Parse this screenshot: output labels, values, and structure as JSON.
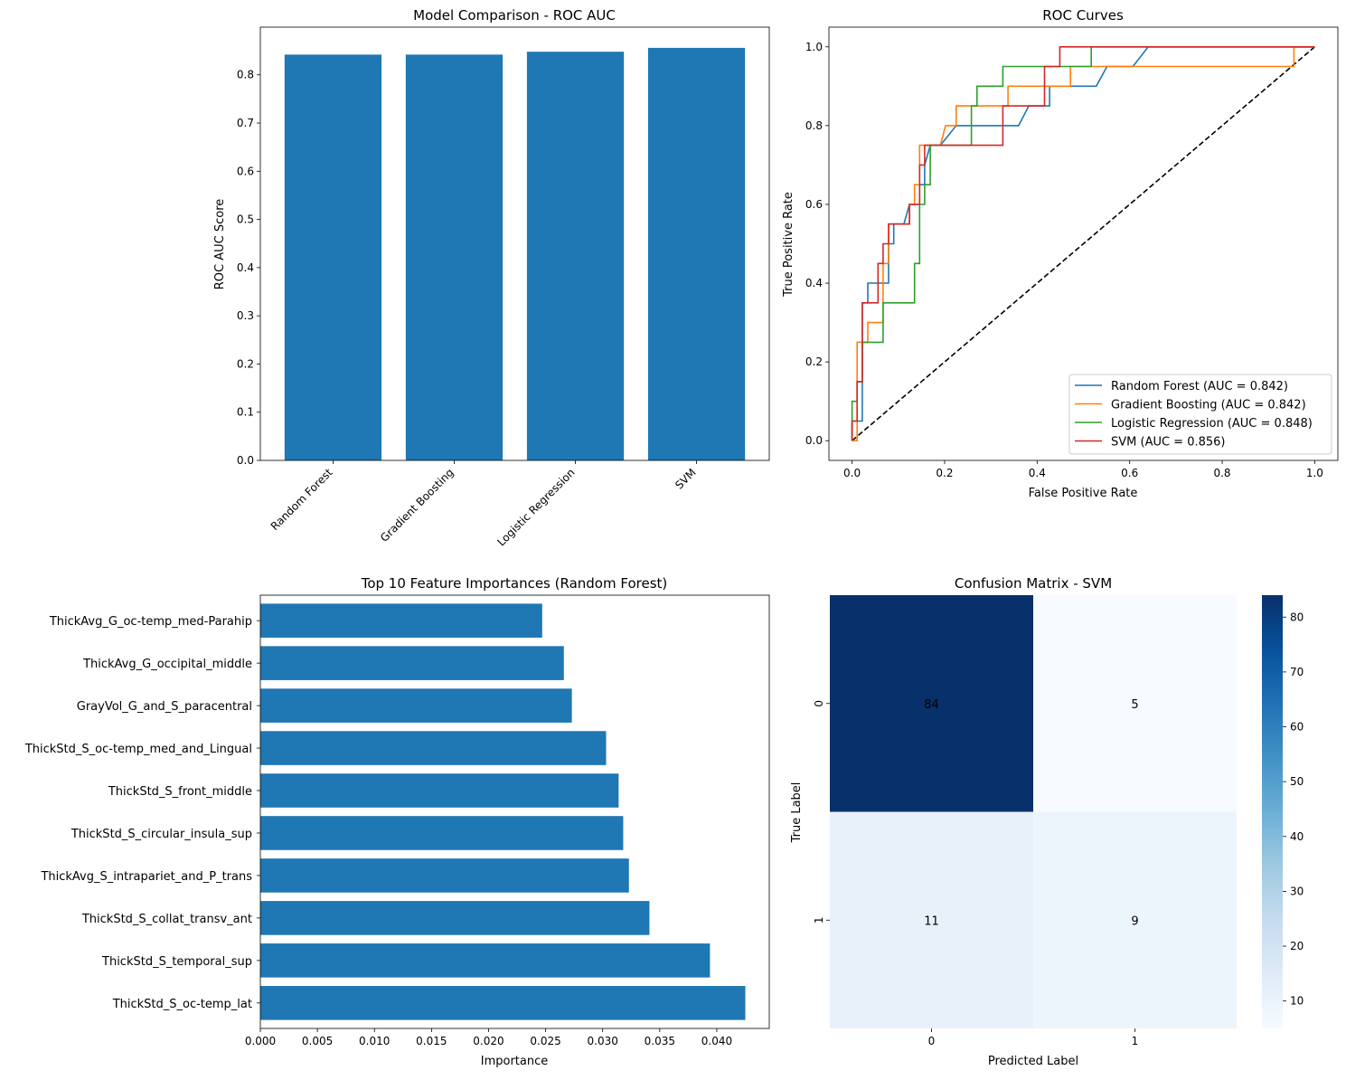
{
  "chart_data": [
    {
      "type": "bar",
      "title": "Model Comparison - ROC AUC",
      "xlabel": "",
      "ylabel": "ROC AUC Score",
      "categories": [
        "Random Forest",
        "Gradient Boosting",
        "Logistic Regression",
        "SVM"
      ],
      "values": [
        0.842,
        0.842,
        0.848,
        0.856
      ],
      "ylim": [
        0,
        0.899
      ],
      "yticks": [
        0.0,
        0.1,
        0.2,
        0.3,
        0.4,
        0.5,
        0.6,
        0.7,
        0.8
      ],
      "ytick_labels": [
        "0.0",
        "0.1",
        "0.2",
        "0.3",
        "0.4",
        "0.5",
        "0.6",
        "0.7",
        "0.8"
      ],
      "color": "#1f77b4"
    },
    {
      "type": "line",
      "title": "ROC Curves",
      "xlabel": "False Positive Rate",
      "ylabel": "True Positive Rate",
      "xlim": [
        -0.05,
        1.05
      ],
      "ylim": [
        -0.05,
        1.05
      ],
      "xticks": [
        0.0,
        0.2,
        0.4,
        0.6,
        0.8,
        1.0
      ],
      "xtick_labels": [
        "0.0",
        "0.2",
        "0.4",
        "0.6",
        "0.8",
        "1.0"
      ],
      "yticks": [
        0.0,
        0.2,
        0.4,
        0.6,
        0.8,
        1.0
      ],
      "ytick_labels": [
        "0.0",
        "0.2",
        "0.4",
        "0.6",
        "0.8",
        "1.0"
      ],
      "legend_position": "lower-right",
      "series": [
        {
          "name": "Random Forest (AUC = 0.842)",
          "color": "#1f77b4",
          "points": [
            [
              0,
              0
            ],
            [
              0,
              0.05
            ],
            [
              0.022,
              0.05
            ],
            [
              0.022,
              0.35
            ],
            [
              0.034,
              0.35
            ],
            [
              0.034,
              0.4
            ],
            [
              0.079,
              0.4
            ],
            [
              0.079,
              0.5
            ],
            [
              0.09,
              0.5
            ],
            [
              0.09,
              0.55
            ],
            [
              0.112,
              0.55
            ],
            [
              0.124,
              0.6
            ],
            [
              0.146,
              0.6
            ],
            [
              0.146,
              0.65
            ],
            [
              0.157,
              0.65
            ],
            [
              0.157,
              0.7
            ],
            [
              0.169,
              0.75
            ],
            [
              0.191,
              0.75
            ],
            [
              0.225,
              0.8
            ],
            [
              0.36,
              0.8
            ],
            [
              0.382,
              0.85
            ],
            [
              0.427,
              0.85
            ],
            [
              0.427,
              0.9
            ],
            [
              0.528,
              0.9
            ],
            [
              0.551,
              0.95
            ],
            [
              0.607,
              0.95
            ],
            [
              0.64,
              1.0
            ],
            [
              1.0,
              1.0
            ]
          ]
        },
        {
          "name": "Gradient Boosting (AUC = 0.842)",
          "color": "#ff7f0e",
          "points": [
            [
              0,
              0
            ],
            [
              0.011,
              0
            ],
            [
              0.011,
              0.25
            ],
            [
              0.034,
              0.25
            ],
            [
              0.034,
              0.3
            ],
            [
              0.067,
              0.3
            ],
            [
              0.067,
              0.45
            ],
            [
              0.079,
              0.45
            ],
            [
              0.079,
              0.55
            ],
            [
              0.124,
              0.55
            ],
            [
              0.124,
              0.6
            ],
            [
              0.135,
              0.6
            ],
            [
              0.135,
              0.65
            ],
            [
              0.146,
              0.65
            ],
            [
              0.146,
              0.7
            ],
            [
              0.146,
              0.75
            ],
            [
              0.191,
              0.75
            ],
            [
              0.202,
              0.8
            ],
            [
              0.225,
              0.8
            ],
            [
              0.225,
              0.85
            ],
            [
              0.337,
              0.85
            ],
            [
              0.337,
              0.9
            ],
            [
              0.472,
              0.9
            ],
            [
              0.472,
              0.95
            ],
            [
              0.955,
              0.95
            ],
            [
              0.955,
              1.0
            ],
            [
              1.0,
              1.0
            ]
          ]
        },
        {
          "name": "Logistic Regression (AUC = 0.848)",
          "color": "#2ca02c",
          "points": [
            [
              0,
              0
            ],
            [
              0,
              0.1
            ],
            [
              0.011,
              0.1
            ],
            [
              0.011,
              0.15
            ],
            [
              0.022,
              0.15
            ],
            [
              0.022,
              0.25
            ],
            [
              0.067,
              0.25
            ],
            [
              0.067,
              0.35
            ],
            [
              0.135,
              0.35
            ],
            [
              0.135,
              0.45
            ],
            [
              0.146,
              0.45
            ],
            [
              0.146,
              0.6
            ],
            [
              0.157,
              0.6
            ],
            [
              0.157,
              0.65
            ],
            [
              0.169,
              0.65
            ],
            [
              0.169,
              0.75
            ],
            [
              0.258,
              0.75
            ],
            [
              0.258,
              0.85
            ],
            [
              0.27,
              0.85
            ],
            [
              0.27,
              0.9
            ],
            [
              0.326,
              0.9
            ],
            [
              0.326,
              0.95
            ],
            [
              0.517,
              0.95
            ],
            [
              0.517,
              1.0
            ],
            [
              1.0,
              1.0
            ]
          ]
        },
        {
          "name": "SVM (AUC = 0.856)",
          "color": "#d62728",
          "points": [
            [
              0,
              0
            ],
            [
              0,
              0.05
            ],
            [
              0.011,
              0.05
            ],
            [
              0.011,
              0.15
            ],
            [
              0.022,
              0.15
            ],
            [
              0.022,
              0.35
            ],
            [
              0.056,
              0.35
            ],
            [
              0.056,
              0.45
            ],
            [
              0.067,
              0.45
            ],
            [
              0.067,
              0.5
            ],
            [
              0.079,
              0.5
            ],
            [
              0.079,
              0.55
            ],
            [
              0.124,
              0.55
            ],
            [
              0.124,
              0.6
            ],
            [
              0.146,
              0.6
            ],
            [
              0.146,
              0.7
            ],
            [
              0.157,
              0.7
            ],
            [
              0.157,
              0.75
            ],
            [
              0.326,
              0.75
            ],
            [
              0.326,
              0.85
            ],
            [
              0.416,
              0.85
            ],
            [
              0.416,
              0.95
            ],
            [
              0.449,
              0.95
            ],
            [
              0.449,
              1.0
            ],
            [
              1.0,
              1.0
            ]
          ]
        },
        {
          "name": "",
          "color": "#000000",
          "dashed": true,
          "points": [
            [
              0,
              0
            ],
            [
              1,
              1
            ]
          ]
        }
      ]
    },
    {
      "type": "bar",
      "orientation": "horizontal",
      "title": "Top 10 Feature Importances (Random Forest)",
      "xlabel": "Importance",
      "ylabel": "",
      "categories": [
        "ThickStd_S_oc-temp_lat",
        "ThickStd_S_temporal_sup",
        "ThickStd_S_collat_transv_ant",
        "ThickAvg_S_intrapariet_and_P_trans",
        "ThickStd_S_circular_insula_sup",
        "ThickStd_S_front_middle",
        "ThickStd_S_oc-temp_med_and_Lingual",
        "GrayVol_G_and_S_paracentral",
        "ThickAvg_G_occipital_middle",
        "ThickAvg_G_oc-temp_med-Parahip"
      ],
      "values": [
        0.0425,
        0.0394,
        0.0341,
        0.0323,
        0.0318,
        0.0314,
        0.0303,
        0.0273,
        0.0266,
        0.0247
      ],
      "xlim": [
        0,
        0.0446
      ],
      "xticks": [
        0.0,
        0.005,
        0.01,
        0.015,
        0.02,
        0.025,
        0.03,
        0.035,
        0.04
      ],
      "xtick_labels": [
        "0.000",
        "0.005",
        "0.010",
        "0.015",
        "0.020",
        "0.025",
        "0.030",
        "0.035",
        "0.040"
      ],
      "color": "#1f77b4"
    },
    {
      "type": "heatmap",
      "title": "Confusion Matrix - SVM",
      "xlabel": "Predicted Label",
      "ylabel": "True Label",
      "x_categories": [
        "0",
        "1"
      ],
      "y_categories": [
        "0",
        "1"
      ],
      "matrix": [
        [
          84,
          5
        ],
        [
          11,
          9
        ]
      ],
      "matrix_labels": [
        [
          "84",
          "5"
        ],
        [
          "11",
          "9"
        ]
      ],
      "colorbar_range": [
        5,
        84
      ],
      "colorbar_ticks": [
        10,
        20,
        30,
        40,
        50,
        60,
        70,
        80
      ],
      "colorbar_tick_labels": [
        "10",
        "20",
        "30",
        "40",
        "50",
        "60",
        "70",
        "80"
      ],
      "colormap": "Blues"
    }
  ]
}
